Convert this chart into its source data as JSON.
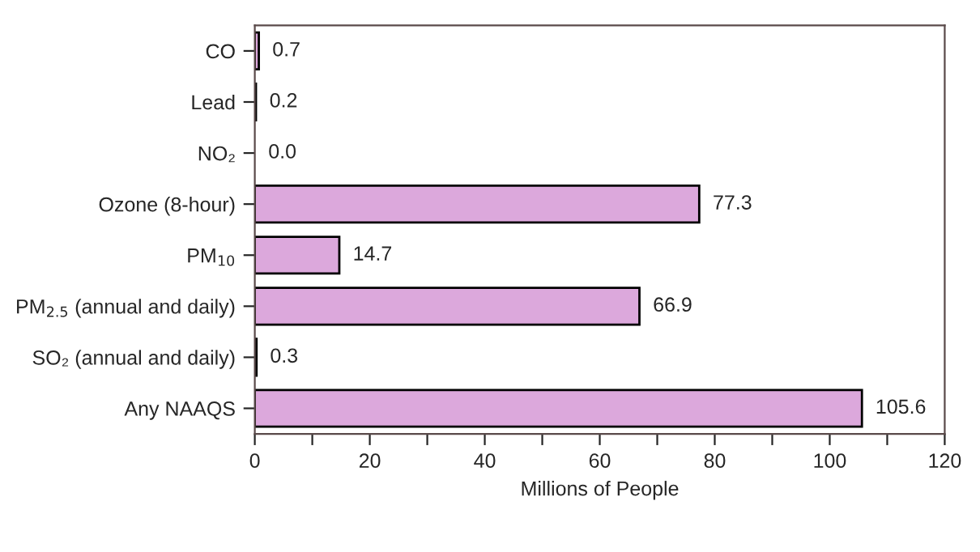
{
  "chart_data": {
    "type": "bar",
    "orientation": "horizontal",
    "xlabel": "Millions of People",
    "categories": [
      "CO",
      "Lead",
      "NO₂",
      "Ozone (8-hour)",
      "PM$_{10}$",
      "PM$_{2.5}$ (annual and daily)",
      "SO₂ (annual and daily)",
      "Any NAAQS"
    ],
    "values": [
      0.7,
      0.2,
      0.0,
      77.3,
      14.7,
      66.9,
      0.3,
      105.6
    ],
    "value_labels": [
      "0.7",
      "0.2",
      "0.0",
      "77.3",
      "14.7",
      "66.9",
      "0.3",
      "105.6"
    ],
    "color": "#dca8dc",
    "grid": false,
    "xlim": [
      0,
      120
    ],
    "xticks": [
      0,
      {
        "value": 10,
        "label": null
      },
      20,
      {
        "value": 30,
        "label": null
      },
      40,
      {
        "value": 50,
        "label": null
      },
      60,
      {
        "value": 70,
        "label": null
      },
      80,
      {
        "value": 90,
        "label": null
      },
      100,
      {
        "value": 110,
        "label": null
      },
      120
    ]
  }
}
